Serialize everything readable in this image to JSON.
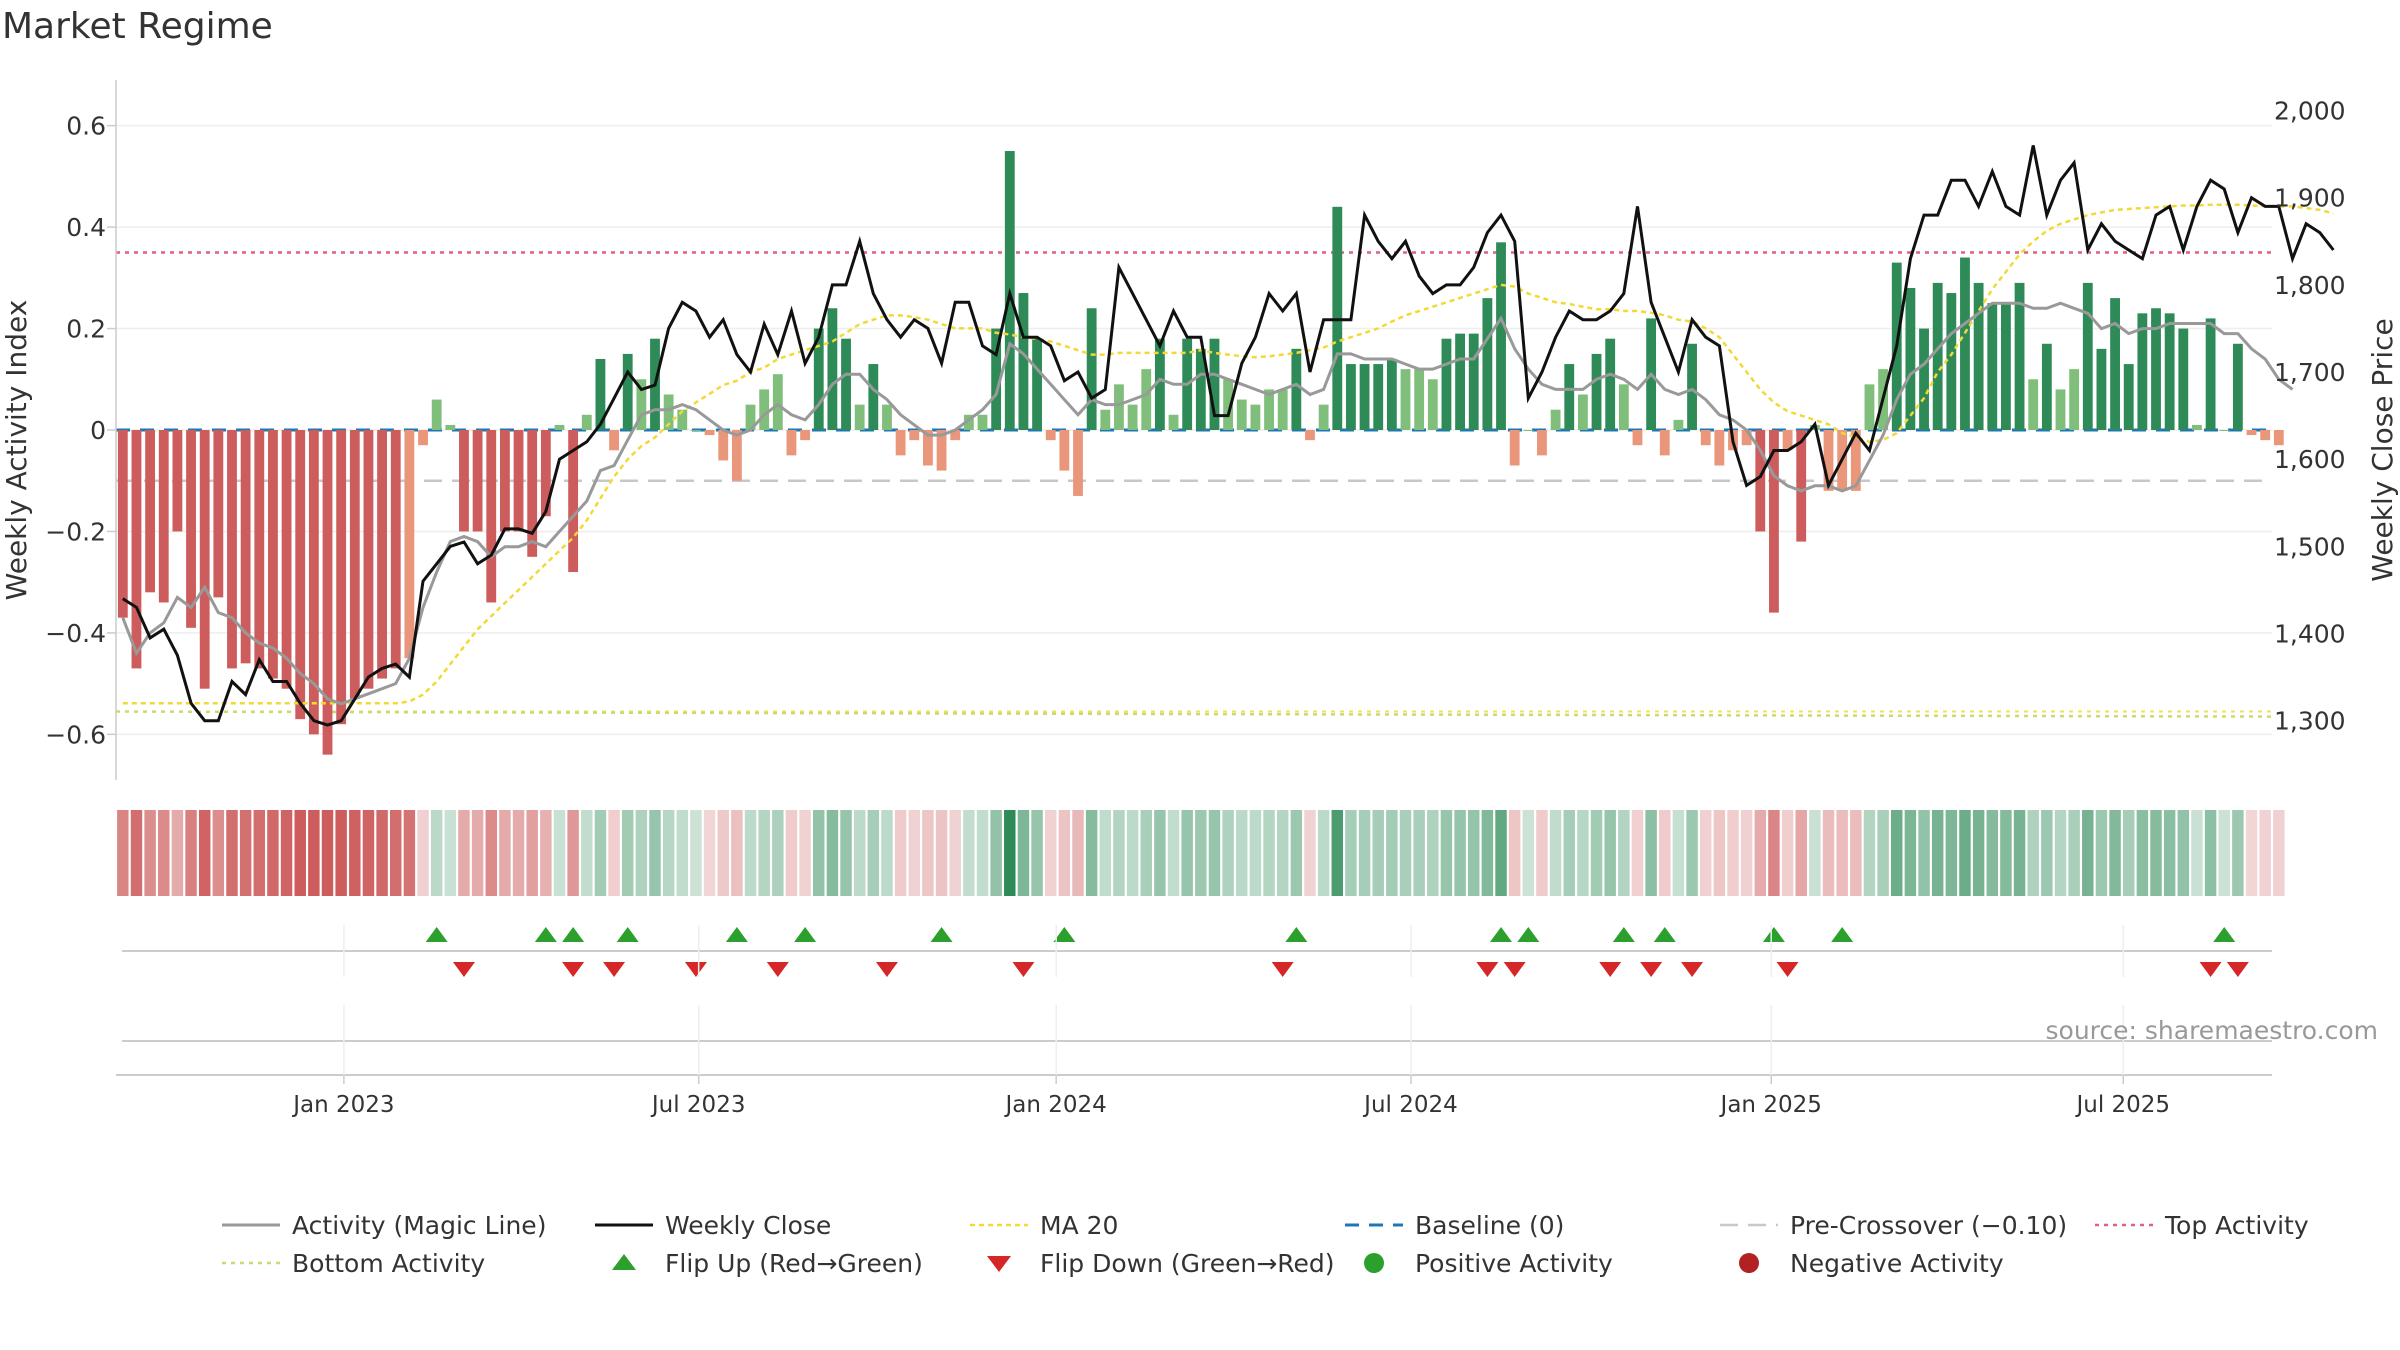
{
  "title": "Market Regime",
  "source": "source: sharemaestro.com",
  "colors": {
    "pos_strong": "#2e8b57",
    "pos_light": "#7fbf7b",
    "neg_strong": "#cd5c5c",
    "neg_light": "#e9967a",
    "magic_line": "#999999",
    "close": "#111111",
    "ma20": "#f2d935",
    "baseline": "#1f77b4",
    "pre_crossover": "#c8c8c8",
    "top_activity": "#e0607e",
    "bottom_activity": "#c8dc6e",
    "flip_up": "#2ca02c",
    "flip_down": "#d62728",
    "pos_dot": "#2ca02c",
    "neg_dot": "#b22222"
  },
  "chart_data": {
    "type": "bar",
    "ylabel_left": "Weekly Activity Index",
    "ylabel_right": "Weekly Close Price",
    "ylim_left": [
      -0.69,
      0.69
    ],
    "ylim_right": [
      1232,
      2035
    ],
    "left_ticks": [
      {
        "value": 0.6,
        "label": "0.6"
      },
      {
        "value": 0.4,
        "label": "0.4"
      },
      {
        "value": 0.2,
        "label": "0.2"
      },
      {
        "value": 0,
        "label": "0"
      },
      {
        "value": -0.2,
        "label": "−0.2"
      },
      {
        "value": -0.4,
        "label": "−0.4"
      },
      {
        "value": -0.6,
        "label": "−0.6"
      }
    ],
    "right_ticks": [
      {
        "value": 2000,
        "label": "2,000"
      },
      {
        "value": 1900,
        "label": "1,900"
      },
      {
        "value": 1800,
        "label": "1,800"
      },
      {
        "value": 1700,
        "label": "1,700"
      },
      {
        "value": 1600,
        "label": "1,600"
      },
      {
        "value": 1500,
        "label": "1,500"
      },
      {
        "value": 1400,
        "label": "1,400"
      },
      {
        "value": 1300,
        "label": "1,300"
      }
    ],
    "x_week_range": [
      0,
      158
    ],
    "x_ticks": [
      {
        "week": 16.2,
        "label": "Jan 2023"
      },
      {
        "week": 42.2,
        "label": "Jul 2023"
      },
      {
        "week": 68.4,
        "label": "Jan 2024"
      },
      {
        "week": 94.4,
        "label": "Jul 2024"
      },
      {
        "week": 120.8,
        "label": "Jan 2025"
      },
      {
        "week": 146.6,
        "label": "Jul 2025"
      }
    ],
    "reference_lines": {
      "top_activity": 0.35,
      "bottom_activity_left": -0.555,
      "bottom_activity_right": -0.565,
      "pre_crossover": -0.1,
      "baseline": 0
    },
    "activity": [
      -0.37,
      -0.47,
      -0.32,
      -0.34,
      -0.2,
      -0.39,
      -0.51,
      -0.33,
      -0.47,
      -0.46,
      -0.47,
      -0.49,
      -0.51,
      -0.57,
      -0.6,
      -0.64,
      -0.58,
      -0.53,
      -0.51,
      -0.49,
      -0.47,
      -0.45,
      -0.03,
      0.06,
      0.01,
      -0.2,
      -0.2,
      -0.34,
      -0.2,
      -0.2,
      -0.25,
      -0.17,
      0.01,
      -0.28,
      0.03,
      0.14,
      -0.04,
      0.15,
      0.1,
      0.18,
      0.07,
      0.04,
      0.0,
      -0.01,
      -0.06,
      -0.1,
      0.05,
      0.08,
      0.11,
      -0.05,
      -0.02,
      0.2,
      0.24,
      0.18,
      0.05,
      0.13,
      0.05,
      -0.05,
      -0.02,
      -0.07,
      -0.08,
      -0.02,
      0.03,
      0.03,
      0.2,
      0.55,
      0.27,
      0.18,
      -0.02,
      -0.08,
      -0.13,
      0.24,
      0.04,
      0.09,
      0.05,
      0.12,
      0.18,
      0.03,
      0.18,
      0.16,
      0.18,
      0.1,
      0.06,
      0.05,
      0.08,
      0.08,
      0.16,
      -0.02,
      0.05,
      0.44,
      0.13,
      0.13,
      0.13,
      0.14,
      0.12,
      0.12,
      0.1,
      0.18,
      0.19,
      0.19,
      0.26,
      0.37,
      -0.07,
      0.0,
      -0.05,
      0.04,
      0.13,
      0.07,
      0.15,
      0.18,
      0.09,
      -0.03,
      0.22,
      -0.05,
      0.02,
      0.17,
      -0.03,
      -0.07,
      -0.04,
      -0.03,
      -0.2,
      -0.36,
      -0.04,
      -0.22,
      0.01,
      -0.12,
      -0.12,
      -0.12,
      0.09,
      0.12,
      0.33,
      0.28,
      0.2,
      0.29,
      0.27,
      0.34,
      0.29,
      0.25,
      0.25,
      0.29,
      0.1,
      0.17,
      0.08,
      0.12,
      0.29,
      0.16,
      0.26,
      0.13,
      0.23,
      0.24,
      0.23,
      0.2,
      0.01,
      0.22,
      0.0,
      0.17,
      -0.01,
      -0.02,
      -0.03
    ],
    "magic_line": [
      -0.37,
      -0.44,
      -0.4,
      -0.38,
      -0.33,
      -0.35,
      -0.31,
      -0.36,
      -0.37,
      -0.4,
      -0.42,
      -0.43,
      -0.45,
      -0.48,
      -0.5,
      -0.53,
      -0.54,
      -0.53,
      -0.52,
      -0.51,
      -0.5,
      -0.45,
      -0.35,
      -0.28,
      -0.22,
      -0.21,
      -0.22,
      -0.25,
      -0.23,
      -0.23,
      -0.22,
      -0.23,
      -0.2,
      -0.17,
      -0.14,
      -0.08,
      -0.07,
      -0.02,
      0.03,
      0.04,
      0.04,
      0.05,
      0.04,
      0.02,
      0.0,
      -0.01,
      0.0,
      0.03,
      0.05,
      0.03,
      0.02,
      0.05,
      0.09,
      0.11,
      0.11,
      0.08,
      0.06,
      0.03,
      0.01,
      -0.01,
      -0.01,
      0.0,
      0.02,
      0.04,
      0.07,
      0.17,
      0.15,
      0.12,
      0.09,
      0.06,
      0.03,
      0.06,
      0.05,
      0.05,
      0.06,
      0.07,
      0.1,
      0.09,
      0.09,
      0.11,
      0.11,
      0.1,
      0.09,
      0.08,
      0.07,
      0.08,
      0.09,
      0.07,
      0.08,
      0.15,
      0.15,
      0.14,
      0.14,
      0.14,
      0.13,
      0.12,
      0.12,
      0.13,
      0.14,
      0.14,
      0.18,
      0.22,
      0.16,
      0.12,
      0.09,
      0.08,
      0.08,
      0.08,
      0.1,
      0.11,
      0.1,
      0.08,
      0.11,
      0.08,
      0.07,
      0.08,
      0.06,
      0.03,
      0.02,
      0.0,
      -0.04,
      -0.09,
      -0.11,
      -0.12,
      -0.11,
      -0.11,
      -0.12,
      -0.11,
      -0.06,
      -0.01,
      0.06,
      0.11,
      0.13,
      0.16,
      0.19,
      0.21,
      0.23,
      0.25,
      0.25,
      0.25,
      0.24,
      0.24,
      0.25,
      0.24,
      0.23,
      0.2,
      0.21,
      0.19,
      0.2,
      0.2,
      0.21,
      0.21,
      0.21,
      0.21,
      0.19,
      0.19,
      0.16,
      0.14,
      0.1,
      0.08
    ],
    "weekly_close": [
      1440,
      1430,
      1395,
      1405,
      1375,
      1320,
      1300,
      1300,
      1345,
      1330,
      1370,
      1345,
      1345,
      1320,
      1300,
      1295,
      1300,
      1325,
      1350,
      1360,
      1365,
      1350,
      1460,
      1480,
      1500,
      1505,
      1480,
      1490,
      1520,
      1520,
      1515,
      1540,
      1600,
      1610,
      1620,
      1640,
      1670,
      1700,
      1680,
      1685,
      1750,
      1780,
      1770,
      1740,
      1760,
      1720,
      1700,
      1755,
      1720,
      1770,
      1710,
      1740,
      1800,
      1800,
      1850,
      1790,
      1760,
      1740,
      1760,
      1750,
      1710,
      1780,
      1780,
      1730,
      1720,
      1790,
      1740,
      1740,
      1730,
      1690,
      1700,
      1670,
      1680,
      1820,
      1790,
      1760,
      1730,
      1770,
      1740,
      1740,
      1650,
      1650,
      1710,
      1740,
      1790,
      1770,
      1790,
      1700,
      1760,
      1760,
      1760,
      1880,
      1850,
      1830,
      1850,
      1810,
      1790,
      1800,
      1800,
      1820,
      1860,
      1880,
      1850,
      1670,
      1700,
      1740,
      1770,
      1760,
      1760,
      1770,
      1790,
      1890,
      1780,
      1740,
      1700,
      1760,
      1740,
      1730,
      1620,
      1570,
      1580,
      1610,
      1610,
      1620,
      1640,
      1570,
      1600,
      1630,
      1610,
      1670,
      1730,
      1830,
      1880,
      1880,
      1920,
      1920,
      1890,
      1930,
      1890,
      1880,
      1960,
      1880,
      1920,
      1940,
      1840,
      1870,
      1850,
      1840,
      1830,
      1880,
      1890,
      1840,
      1890,
      1920,
      1910,
      1860,
      1900,
      1890,
      1890,
      1830,
      1870,
      1860,
      1840
    ],
    "ma20": [
      1320,
      1320,
      1320,
      1320,
      1320,
      1320,
      1320,
      1320,
      1320,
      1320,
      1320,
      1320,
      1320,
      1320,
      1320,
      1320,
      1320,
      1320,
      1320,
      1320,
      1320,
      1322,
      1330,
      1345,
      1365,
      1385,
      1405,
      1420,
      1435,
      1450,
      1465,
      1480,
      1495,
      1510,
      1530,
      1555,
      1580,
      1600,
      1615,
      1625,
      1640,
      1655,
      1665,
      1675,
      1685,
      1690,
      1700,
      1705,
      1715,
      1720,
      1725,
      1730,
      1735,
      1745,
      1755,
      1760,
      1765,
      1765,
      1763,
      1760,
      1755,
      1750,
      1750,
      1750,
      1745,
      1743,
      1740,
      1738,
      1735,
      1730,
      1725,
      1720,
      1720,
      1722,
      1722,
      1722,
      1722,
      1722,
      1722,
      1725,
      1722,
      1720,
      1718,
      1717,
      1718,
      1720,
      1722,
      1725,
      1728,
      1735,
      1740,
      1745,
      1750,
      1758,
      1765,
      1770,
      1775,
      1780,
      1785,
      1790,
      1795,
      1800,
      1798,
      1790,
      1785,
      1780,
      1778,
      1775,
      1772,
      1772,
      1770,
      1770,
      1768,
      1765,
      1760,
      1758,
      1750,
      1740,
      1720,
      1700,
      1680,
      1665,
      1655,
      1650,
      1645,
      1640,
      1630,
      1625,
      1620,
      1622,
      1630,
      1650,
      1670,
      1700,
      1720,
      1745,
      1770,
      1795,
      1815,
      1835,
      1850,
      1862,
      1870,
      1875,
      1880,
      1883,
      1886,
      1887,
      1888,
      1889,
      1890,
      1891,
      1891,
      1892,
      1892,
      1892,
      1891,
      1890,
      1890,
      1890,
      1888,
      1886,
      1882
    ],
    "flip_up_weeks": [
      23,
      31,
      33,
      37,
      45,
      50,
      60,
      69,
      86,
      101,
      103,
      110,
      113,
      121,
      126,
      154
    ],
    "flip_down_weeks": [
      25,
      33,
      36,
      42,
      48,
      56,
      66,
      85,
      100,
      102,
      109,
      112,
      115,
      122,
      153,
      155
    ],
    "series": [
      {
        "name": "Activity (Magic Line)"
      },
      {
        "name": "Weekly Close"
      },
      {
        "name": "MA 20"
      },
      {
        "name": "Baseline (0)"
      },
      {
        "name": "Pre-Crossover (−0.10)"
      },
      {
        "name": "Top Activity"
      },
      {
        "name": "Bottom Activity"
      },
      {
        "name": "Flip Up (Red→Green)"
      },
      {
        "name": "Flip Down (Green→Red)"
      },
      {
        "name": "Positive Activity"
      },
      {
        "name": "Negative Activity"
      }
    ]
  }
}
